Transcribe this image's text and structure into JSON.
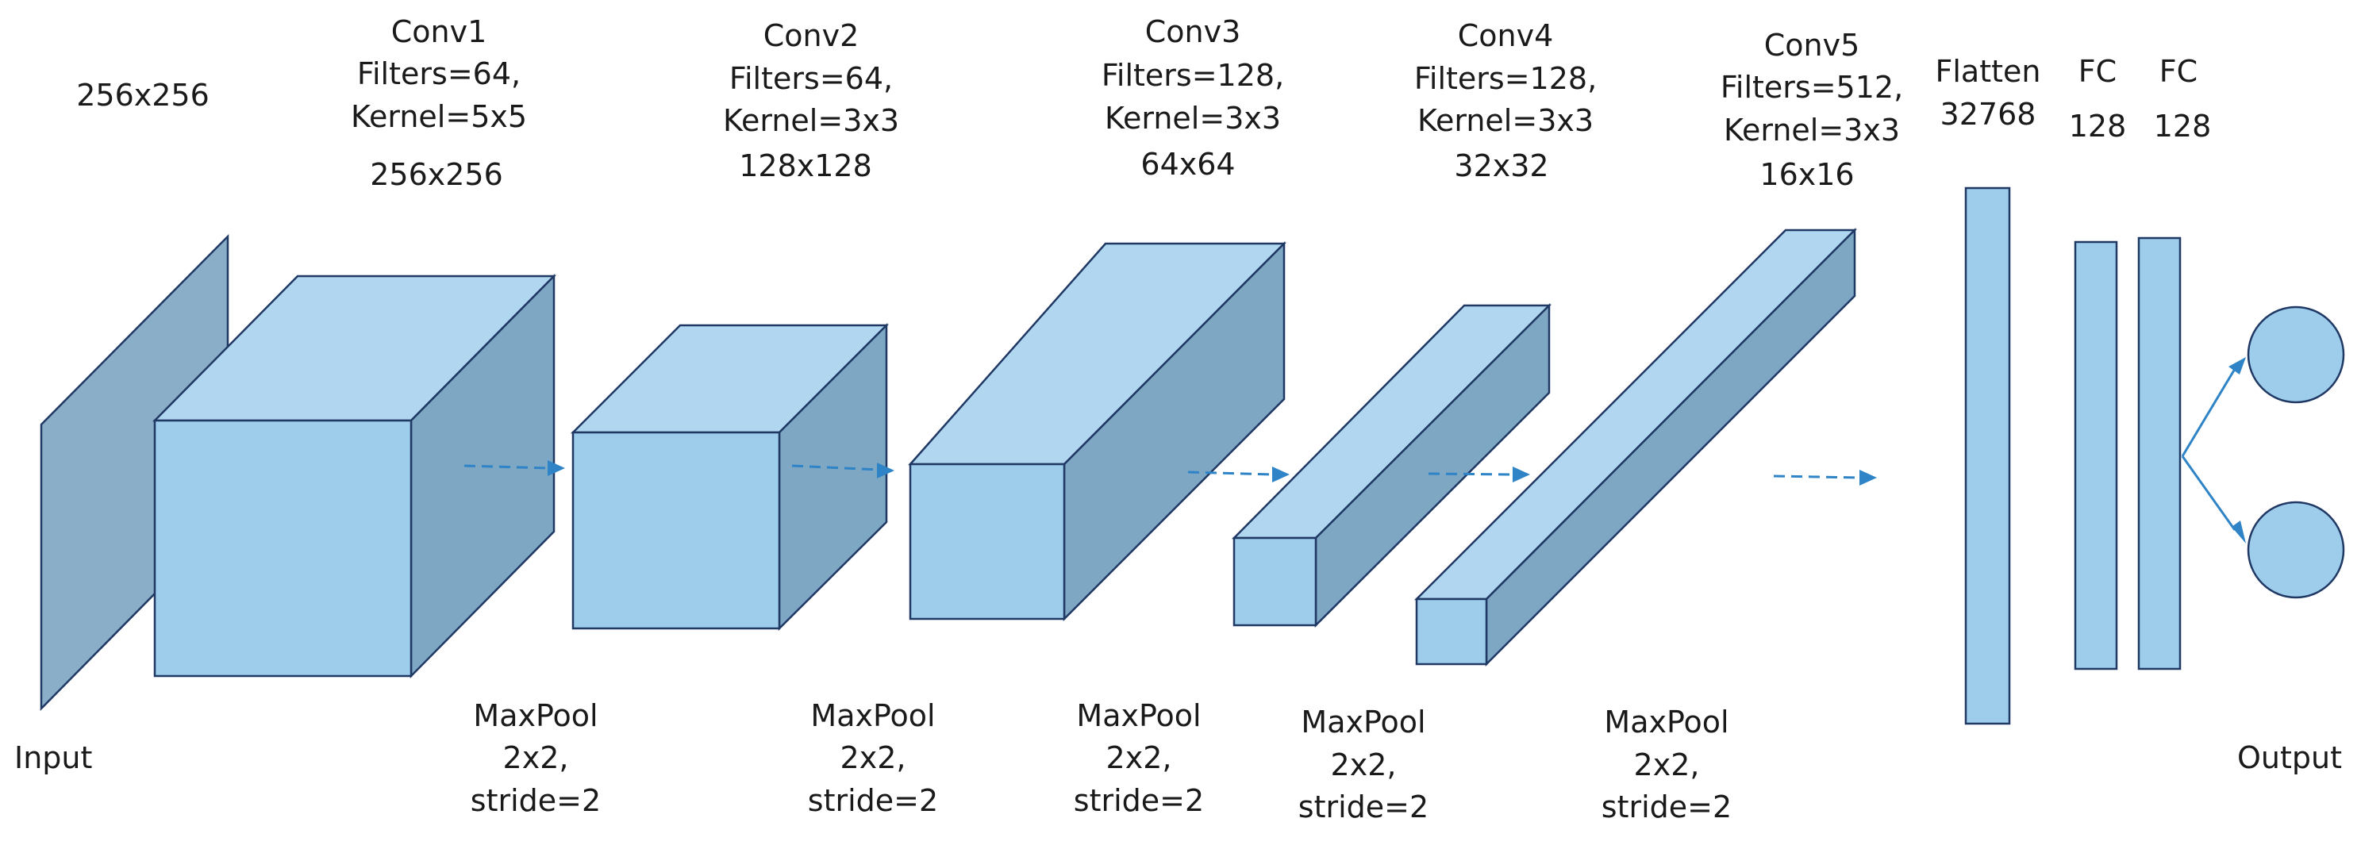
{
  "input": {
    "size_label": "256x256",
    "caption": "Input"
  },
  "conv_layers": [
    {
      "name": "Conv1",
      "filters": "Filters=64,",
      "kernel": "Kernel=5x5",
      "size": "256x256"
    },
    {
      "name": "Conv2",
      "filters": "Filters=64,",
      "kernel": "Kernel=3x3",
      "size": "128x128"
    },
    {
      "name": "Conv3",
      "filters": "Filters=128,",
      "kernel": "Kernel=3x3",
      "size": "64x64"
    },
    {
      "name": "Conv4",
      "filters": "Filters=128,",
      "kernel": "Kernel=3x3",
      "size": "32x32"
    },
    {
      "name": "Conv5",
      "filters": "Filters=512,",
      "kernel": "Kernel=3x3",
      "size": "16x16"
    }
  ],
  "pool_layers": [
    {
      "name": "MaxPool",
      "size": "2x2,",
      "stride": "stride=2"
    },
    {
      "name": "MaxPool",
      "size": "2x2,",
      "stride": "stride=2"
    },
    {
      "name": "MaxPool",
      "size": "2x2,",
      "stride": "stride=2"
    },
    {
      "name": "MaxPool",
      "size": "2x2,",
      "stride": "stride=2"
    },
    {
      "name": "MaxPool",
      "size": "2x2,",
      "stride": "stride=2"
    }
  ],
  "flatten": {
    "name": "Flatten",
    "units": "32768"
  },
  "fc_layers": [
    {
      "name": "FC",
      "units": "128"
    },
    {
      "name": "FC",
      "units": "128"
    }
  ],
  "output": {
    "caption": "Output"
  },
  "colors": {
    "block_front": "#9ecdec",
    "block_top": "#b1d7f0",
    "block_side": "#7ea7c4",
    "outline": "#1f3864",
    "arrow": "#2e84c6"
  }
}
